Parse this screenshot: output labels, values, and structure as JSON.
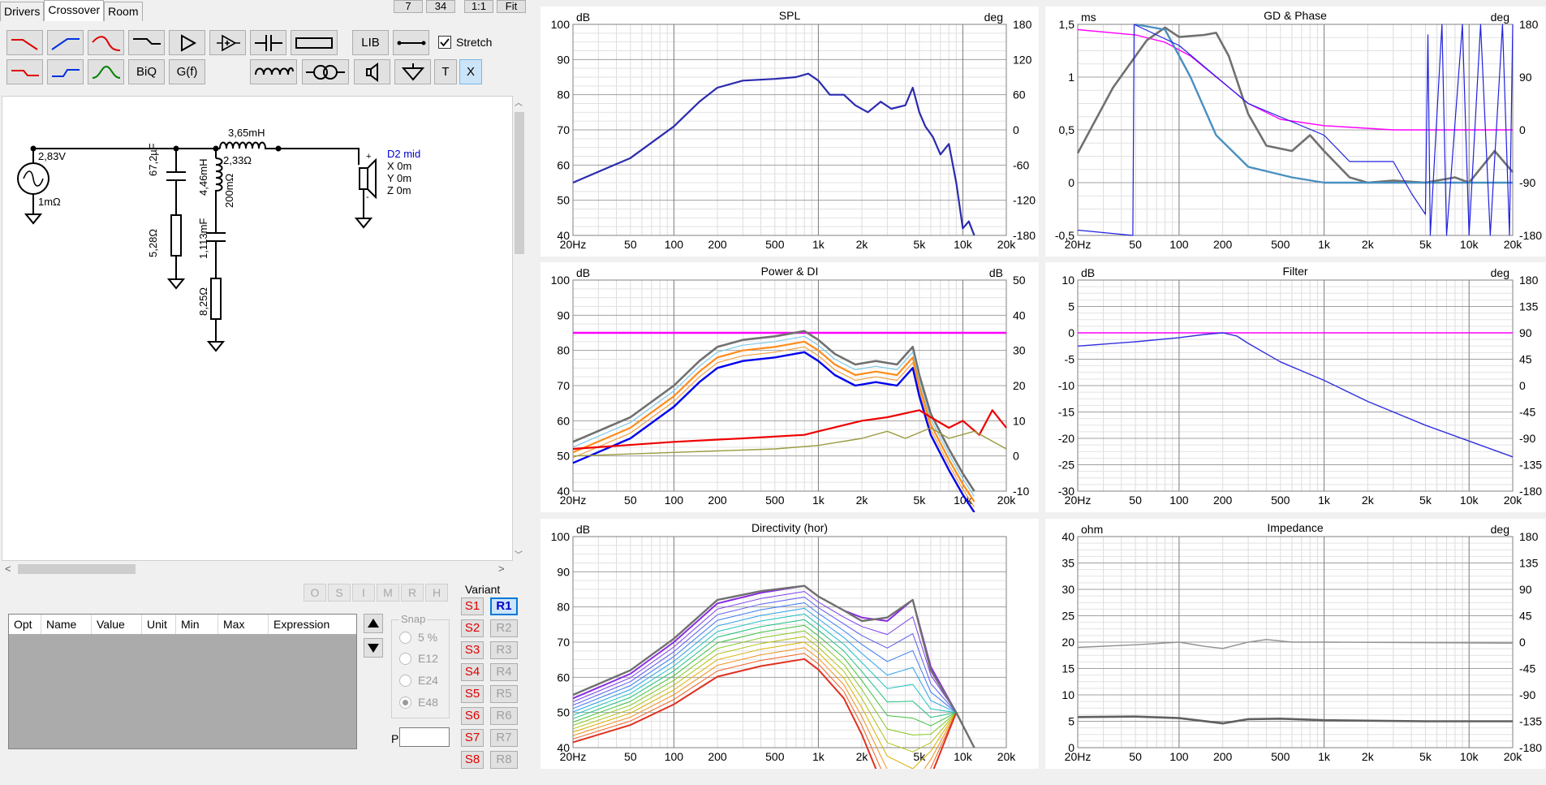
{
  "tabs": [
    {
      "label": "Drivers"
    },
    {
      "label": "Crossover"
    },
    {
      "label": "Room"
    }
  ],
  "top_buttons": [
    "7",
    "34",
    "1:1",
    "Fit"
  ],
  "toolbar": {
    "lib_label": "LIB",
    "biq_label": "BiQ",
    "gf_label": "G(f)",
    "t_label": "T",
    "x_label": "X",
    "stretch_label": "Stretch"
  },
  "schematic": {
    "source_voltage": "2,83V",
    "source_impedance": "1mΩ",
    "l1": "3,65mH",
    "l1_res": "2,33Ω",
    "c1": "67,2µF",
    "r1": "5,28Ω",
    "l2": "4,46mH",
    "l2_res": "200mΩ",
    "c2": "1,113mF",
    "r2": "8,25Ω",
    "driver_name": "D2 mid",
    "driver_x": "X 0m",
    "driver_y": "Y 0m",
    "driver_z": "Z 0m"
  },
  "opt_tools": [
    "O",
    "S",
    "I",
    "M",
    "R",
    "H"
  ],
  "param_table": {
    "headers": [
      "Opt",
      "Name",
      "Value",
      "Unit",
      "Min",
      "Max",
      "Expression"
    ]
  },
  "snap": {
    "title": "Snap",
    "options": [
      "5 %",
      "E12",
      "E24",
      "E48"
    ],
    "selected": "E48"
  },
  "part_label": "Part #",
  "variant": {
    "title": "Variant",
    "s": [
      "S1",
      "S2",
      "S3",
      "S4",
      "S5",
      "S6",
      "S7",
      "S8"
    ],
    "r": [
      "R1",
      "R2",
      "R3",
      "R4",
      "R5",
      "R6",
      "R7",
      "R8"
    ],
    "selected": "R1"
  },
  "graphs": {
    "spl": {
      "title": "SPL",
      "left_unit": "dB",
      "right_unit": "deg",
      "left_ticks": [
        "100",
        "90",
        "80",
        "70",
        "60",
        "50",
        "40"
      ],
      "right_ticks": [
        "180",
        "120",
        "60",
        "0",
        "-60",
        "-120",
        "-180"
      ],
      "x_ticks": [
        "20Hz",
        "50",
        "100",
        "200",
        "500",
        "1k",
        "2k",
        "5k",
        "10k",
        "20k"
      ]
    },
    "gd": {
      "title": "GD & Phase",
      "left_unit": "ms",
      "right_unit": "deg",
      "left_ticks": [
        "1,5",
        "1",
        "0,5",
        "0",
        "-0,5"
      ],
      "right_ticks": [
        "180",
        "90",
        "0",
        "-90",
        "-180"
      ],
      "x_ticks": [
        "20Hz",
        "50",
        "100",
        "200",
        "500",
        "1k",
        "2k",
        "5k",
        "10k",
        "20k"
      ]
    },
    "power": {
      "title": "Power & DI",
      "left_unit": "dB",
      "right_unit": "dB",
      "left_ticks": [
        "100",
        "90",
        "80",
        "70",
        "60",
        "50",
        "40"
      ],
      "right_ticks": [
        "50",
        "40",
        "30",
        "20",
        "10",
        "0",
        "-10"
      ],
      "x_ticks": [
        "20Hz",
        "50",
        "100",
        "200",
        "500",
        "1k",
        "2k",
        "5k",
        "10k",
        "20k"
      ]
    },
    "filter": {
      "title": "Filter",
      "left_unit": "dB",
      "right_unit": "deg",
      "left_ticks": [
        "10",
        "5",
        "0",
        "-5",
        "-10",
        "-15",
        "-20",
        "-25",
        "-30"
      ],
      "right_ticks": [
        "180",
        "135",
        "90",
        "45",
        "0",
        "-45",
        "-90",
        "-135",
        "-180"
      ],
      "x_ticks": [
        "20Hz",
        "50",
        "100",
        "200",
        "500",
        "1k",
        "2k",
        "5k",
        "10k",
        "20k"
      ]
    },
    "directivity": {
      "title": "Directivity (hor)",
      "left_unit": "dB",
      "right_unit": "",
      "left_ticks": [
        "100",
        "90",
        "80",
        "70",
        "60",
        "50",
        "40"
      ],
      "right_ticks": [],
      "x_ticks": [
        "20Hz",
        "50",
        "100",
        "200",
        "500",
        "1k",
        "2k",
        "5k",
        "10k",
        "20k"
      ]
    },
    "impedance": {
      "title": "Impedance",
      "left_unit": "ohm",
      "right_unit": "deg",
      "left_ticks": [
        "40",
        "35",
        "30",
        "25",
        "20",
        "15",
        "10",
        "5",
        "0"
      ],
      "right_ticks": [
        "180",
        "135",
        "90",
        "45",
        "0",
        "-45",
        "-90",
        "-135",
        "-180"
      ],
      "x_ticks": [
        "20Hz",
        "50",
        "100",
        "200",
        "500",
        "1k",
        "2k",
        "5k",
        "10k",
        "20k"
      ]
    }
  },
  "colors": {
    "spl": "#2b2bb0",
    "phase_magenta": "#ff00ff",
    "gd_gray": "#707070",
    "gd_blue": "#4a90c0",
    "di_red": "#ee0000",
    "di_olive": "#9a9a40",
    "orange": "#ff8c1a"
  }
}
